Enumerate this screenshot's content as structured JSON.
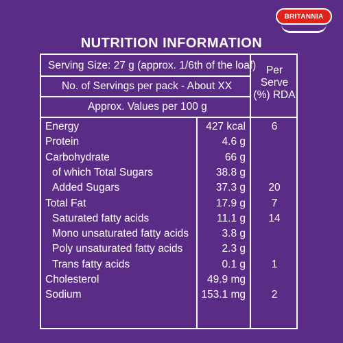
{
  "brand": "BRITANNIA",
  "title": "NUTRITION INFORMATION",
  "header": {
    "serving_size": "Serving Size: 27 g (approx. 1/6th of the loaf)",
    "servings_per_pack": "No. of Servings per pack - About XX",
    "values_per": "Approx. Values per 100 g",
    "rda_line1": "Per",
    "rda_line2": "Serve",
    "rda_line3": "(%) RDA"
  },
  "rows": [
    {
      "name": "Energy",
      "value": "427 kcal",
      "rda": "6"
    },
    {
      "name": "Protein",
      "value": "4.6 g",
      "rda": ""
    },
    {
      "name": "Carbohydrate",
      "value": "66 g",
      "rda": ""
    },
    {
      "name": "of which Total Sugars",
      "value": "38.8 g",
      "rda": ""
    },
    {
      "name": "Added Sugars",
      "value": "37.3 g",
      "rda": "20"
    },
    {
      "name": "Total Fat",
      "value": "17.9 g",
      "rda": "7"
    },
    {
      "name": "Saturated fatty acids",
      "value": "11.1 g",
      "rda": "14"
    },
    {
      "name": "Mono unsaturated fatty acids",
      "value": "3.8 g",
      "rda": ""
    },
    {
      "name": "Poly unsaturated fatty acids",
      "value": "2.3 g",
      "rda": ""
    },
    {
      "name": "Trans fatty acids",
      "value": "0.1 g",
      "rda": "1"
    },
    {
      "name": "Cholesterol",
      "value": "49.9 mg",
      "rda": ""
    },
    {
      "name": "Sodium",
      "value": "153.1 mg",
      "rda": "2"
    }
  ],
  "colors": {
    "background": "#5b2c86",
    "brand_red": "#e2231a",
    "text": "#ffffff"
  }
}
